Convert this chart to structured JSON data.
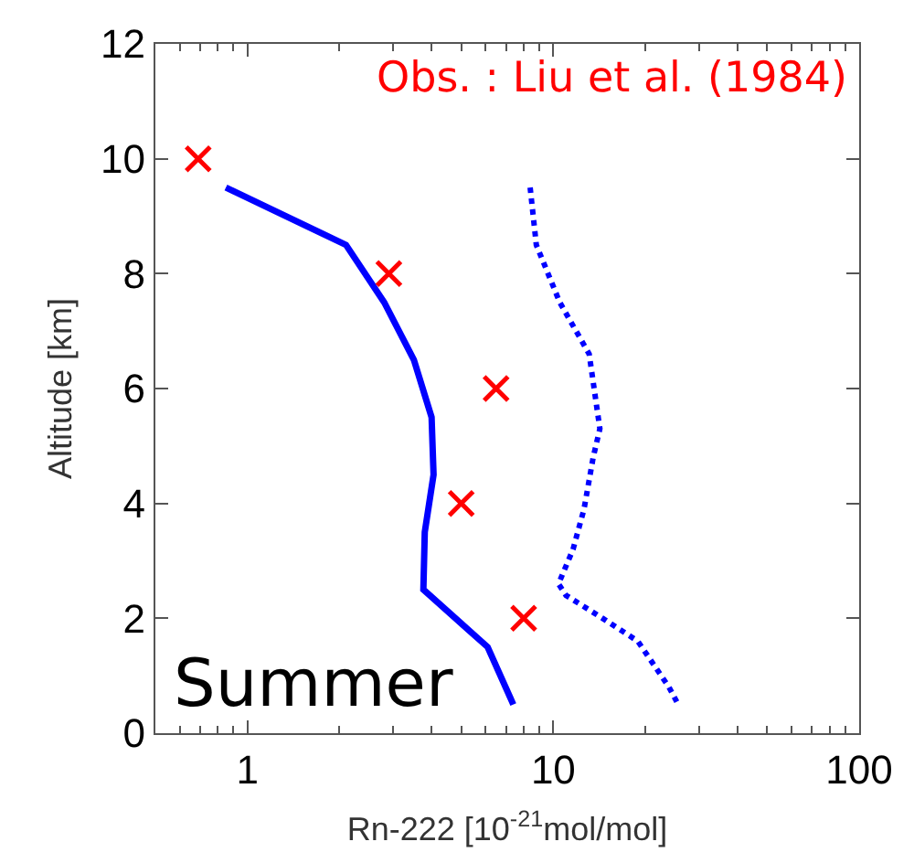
{
  "chart_data": {
    "type": "line",
    "xlabel": "Rn-222 [10$^{-21}$mol/mol]",
    "ylabel": "Altitude [km]",
    "annotations": [
      "Obs. : Liu et al. (1984)",
      "Summer"
    ],
    "log": "x",
    "xlim": [
      0.5,
      100
    ],
    "xticks": [
      1,
      10,
      100
    ],
    "ylim": [
      0,
      12
    ],
    "yticks": [
      0,
      2,
      4,
      6,
      8,
      10,
      12
    ],
    "series": [
      {
        "color": "#0000ff",
        "line_style": "solid",
        "marker": "none",
        "x": [
          0.85,
          2.1,
          2.8,
          3.5,
          4.0,
          4.06,
          3.8,
          3.76,
          6.1,
          7.4
        ],
        "values": [
          9.5,
          8.5,
          7.5,
          6.5,
          5.5,
          4.5,
          3.5,
          2.5,
          1.5,
          0.5
        ]
      },
      {
        "color": "#0000ff",
        "line_style": "dotted",
        "marker": "none",
        "x": [
          8.4,
          8.8,
          10.5,
          13.1,
          14.2,
          13.5,
          12.6,
          11.6,
          10.4,
          11.0,
          14.5,
          18.9,
          23.9,
          25.6
        ],
        "values": [
          9.5,
          8.5,
          7.5,
          6.6,
          5.3,
          4.8,
          3.9,
          3.2,
          2.6,
          2.4,
          2.0,
          1.6,
          0.8,
          0.5
        ]
      },
      {
        "type": "scatter",
        "color": "#ff0000",
        "marker": "cross",
        "x": [
          0.69,
          2.9,
          6.5,
          5.0,
          8.0
        ],
        "values": [
          10,
          8,
          6,
          4,
          2
        ]
      }
    ]
  }
}
